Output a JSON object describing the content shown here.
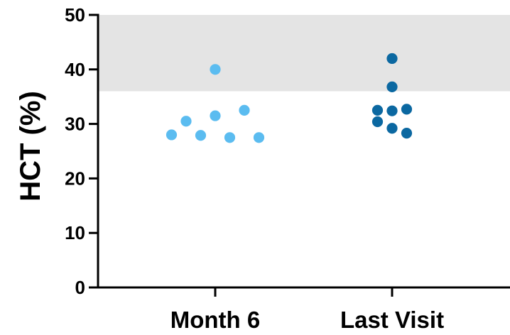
{
  "chart_data": {
    "type": "scatter",
    "title": "",
    "xlabel": "",
    "ylabel": "HCT (%)",
    "ylim": [
      0,
      50
    ],
    "yticks": [
      0,
      10,
      20,
      30,
      40,
      50
    ],
    "yticklabels": [
      "0",
      "10",
      "20",
      "30",
      "40",
      "50"
    ],
    "categories": [
      "Month 6",
      "Last Visit"
    ],
    "grid": false,
    "legend": "none",
    "reference_band": {
      "from": 36,
      "to": 50,
      "color": "#e4e4e4"
    },
    "series": [
      {
        "category": "Month 6",
        "color": "#5bbcf0",
        "points": [
          {
            "offset": -3,
            "y": 28.0
          },
          {
            "offset": -2,
            "y": 30.5
          },
          {
            "offset": -1,
            "y": 27.9
          },
          {
            "offset": 0,
            "y": 40.0
          },
          {
            "offset": 0,
            "y": 31.5
          },
          {
            "offset": 1,
            "y": 27.5
          },
          {
            "offset": 2,
            "y": 32.5
          },
          {
            "offset": 3,
            "y": 27.5
          }
        ]
      },
      {
        "category": "Last Visit",
        "color": "#0b68a1",
        "points": [
          {
            "offset": 0,
            "y": 42.0
          },
          {
            "offset": 0,
            "y": 36.8
          },
          {
            "offset": -1,
            "y": 32.5
          },
          {
            "offset": 0,
            "y": 32.4
          },
          {
            "offset": 1,
            "y": 32.7
          },
          {
            "offset": -1,
            "y": 30.4
          },
          {
            "offset": 0,
            "y": 29.2
          },
          {
            "offset": 1,
            "y": 28.3
          }
        ]
      }
    ]
  }
}
